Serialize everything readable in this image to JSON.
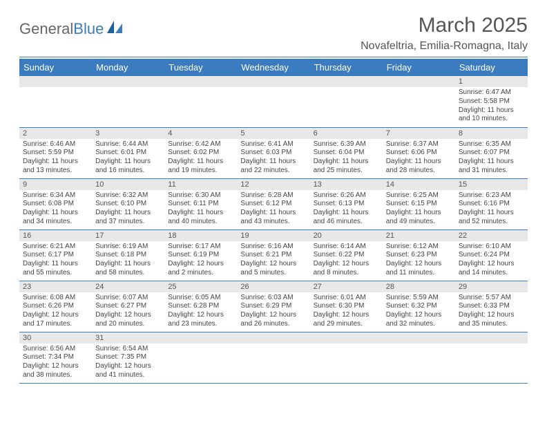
{
  "logo": {
    "textA": "General",
    "textB": "Blue"
  },
  "title": "March 2025",
  "location": "Novafeltria, Emilia-Romagna, Italy",
  "colors": {
    "header_bg": "#3b7bbf",
    "header_text": "#ffffff",
    "daynum_bg": "#e8e8e8",
    "border": "#3b7bbf",
    "body_text": "#444444",
    "title_text": "#555555"
  },
  "typography": {
    "title_fontsize": 30,
    "location_fontsize": 16,
    "dayheader_fontsize": 13,
    "daynum_fontsize": 11,
    "cell_fontsize": 10
  },
  "weekdays": [
    "Sunday",
    "Monday",
    "Tuesday",
    "Wednesday",
    "Thursday",
    "Friday",
    "Saturday"
  ],
  "weeks": [
    [
      null,
      null,
      null,
      null,
      null,
      null,
      {
        "n": "1",
        "sr": "Sunrise: 6:47 AM",
        "ss": "Sunset: 5:58 PM",
        "d1": "Daylight: 11 hours",
        "d2": "and 10 minutes."
      }
    ],
    [
      {
        "n": "2",
        "sr": "Sunrise: 6:46 AM",
        "ss": "Sunset: 5:59 PM",
        "d1": "Daylight: 11 hours",
        "d2": "and 13 minutes."
      },
      {
        "n": "3",
        "sr": "Sunrise: 6:44 AM",
        "ss": "Sunset: 6:01 PM",
        "d1": "Daylight: 11 hours",
        "d2": "and 16 minutes."
      },
      {
        "n": "4",
        "sr": "Sunrise: 6:42 AM",
        "ss": "Sunset: 6:02 PM",
        "d1": "Daylight: 11 hours",
        "d2": "and 19 minutes."
      },
      {
        "n": "5",
        "sr": "Sunrise: 6:41 AM",
        "ss": "Sunset: 6:03 PM",
        "d1": "Daylight: 11 hours",
        "d2": "and 22 minutes."
      },
      {
        "n": "6",
        "sr": "Sunrise: 6:39 AM",
        "ss": "Sunset: 6:04 PM",
        "d1": "Daylight: 11 hours",
        "d2": "and 25 minutes."
      },
      {
        "n": "7",
        "sr": "Sunrise: 6:37 AM",
        "ss": "Sunset: 6:06 PM",
        "d1": "Daylight: 11 hours",
        "d2": "and 28 minutes."
      },
      {
        "n": "8",
        "sr": "Sunrise: 6:35 AM",
        "ss": "Sunset: 6:07 PM",
        "d1": "Daylight: 11 hours",
        "d2": "and 31 minutes."
      }
    ],
    [
      {
        "n": "9",
        "sr": "Sunrise: 6:34 AM",
        "ss": "Sunset: 6:08 PM",
        "d1": "Daylight: 11 hours",
        "d2": "and 34 minutes."
      },
      {
        "n": "10",
        "sr": "Sunrise: 6:32 AM",
        "ss": "Sunset: 6:10 PM",
        "d1": "Daylight: 11 hours",
        "d2": "and 37 minutes."
      },
      {
        "n": "11",
        "sr": "Sunrise: 6:30 AM",
        "ss": "Sunset: 6:11 PM",
        "d1": "Daylight: 11 hours",
        "d2": "and 40 minutes."
      },
      {
        "n": "12",
        "sr": "Sunrise: 6:28 AM",
        "ss": "Sunset: 6:12 PM",
        "d1": "Daylight: 11 hours",
        "d2": "and 43 minutes."
      },
      {
        "n": "13",
        "sr": "Sunrise: 6:26 AM",
        "ss": "Sunset: 6:13 PM",
        "d1": "Daylight: 11 hours",
        "d2": "and 46 minutes."
      },
      {
        "n": "14",
        "sr": "Sunrise: 6:25 AM",
        "ss": "Sunset: 6:15 PM",
        "d1": "Daylight: 11 hours",
        "d2": "and 49 minutes."
      },
      {
        "n": "15",
        "sr": "Sunrise: 6:23 AM",
        "ss": "Sunset: 6:16 PM",
        "d1": "Daylight: 11 hours",
        "d2": "and 52 minutes."
      }
    ],
    [
      {
        "n": "16",
        "sr": "Sunrise: 6:21 AM",
        "ss": "Sunset: 6:17 PM",
        "d1": "Daylight: 11 hours",
        "d2": "and 55 minutes."
      },
      {
        "n": "17",
        "sr": "Sunrise: 6:19 AM",
        "ss": "Sunset: 6:18 PM",
        "d1": "Daylight: 11 hours",
        "d2": "and 58 minutes."
      },
      {
        "n": "18",
        "sr": "Sunrise: 6:17 AM",
        "ss": "Sunset: 6:19 PM",
        "d1": "Daylight: 12 hours",
        "d2": "and 2 minutes."
      },
      {
        "n": "19",
        "sr": "Sunrise: 6:16 AM",
        "ss": "Sunset: 6:21 PM",
        "d1": "Daylight: 12 hours",
        "d2": "and 5 minutes."
      },
      {
        "n": "20",
        "sr": "Sunrise: 6:14 AM",
        "ss": "Sunset: 6:22 PM",
        "d1": "Daylight: 12 hours",
        "d2": "and 8 minutes."
      },
      {
        "n": "21",
        "sr": "Sunrise: 6:12 AM",
        "ss": "Sunset: 6:23 PM",
        "d1": "Daylight: 12 hours",
        "d2": "and 11 minutes."
      },
      {
        "n": "22",
        "sr": "Sunrise: 6:10 AM",
        "ss": "Sunset: 6:24 PM",
        "d1": "Daylight: 12 hours",
        "d2": "and 14 minutes."
      }
    ],
    [
      {
        "n": "23",
        "sr": "Sunrise: 6:08 AM",
        "ss": "Sunset: 6:26 PM",
        "d1": "Daylight: 12 hours",
        "d2": "and 17 minutes."
      },
      {
        "n": "24",
        "sr": "Sunrise: 6:07 AM",
        "ss": "Sunset: 6:27 PM",
        "d1": "Daylight: 12 hours",
        "d2": "and 20 minutes."
      },
      {
        "n": "25",
        "sr": "Sunrise: 6:05 AM",
        "ss": "Sunset: 6:28 PM",
        "d1": "Daylight: 12 hours",
        "d2": "and 23 minutes."
      },
      {
        "n": "26",
        "sr": "Sunrise: 6:03 AM",
        "ss": "Sunset: 6:29 PM",
        "d1": "Daylight: 12 hours",
        "d2": "and 26 minutes."
      },
      {
        "n": "27",
        "sr": "Sunrise: 6:01 AM",
        "ss": "Sunset: 6:30 PM",
        "d1": "Daylight: 12 hours",
        "d2": "and 29 minutes."
      },
      {
        "n": "28",
        "sr": "Sunrise: 5:59 AM",
        "ss": "Sunset: 6:32 PM",
        "d1": "Daylight: 12 hours",
        "d2": "and 32 minutes."
      },
      {
        "n": "29",
        "sr": "Sunrise: 5:57 AM",
        "ss": "Sunset: 6:33 PM",
        "d1": "Daylight: 12 hours",
        "d2": "and 35 minutes."
      }
    ],
    [
      {
        "n": "30",
        "sr": "Sunrise: 6:56 AM",
        "ss": "Sunset: 7:34 PM",
        "d1": "Daylight: 12 hours",
        "d2": "and 38 minutes."
      },
      {
        "n": "31",
        "sr": "Sunrise: 6:54 AM",
        "ss": "Sunset: 7:35 PM",
        "d1": "Daylight: 12 hours",
        "d2": "and 41 minutes."
      },
      null,
      null,
      null,
      null,
      null
    ]
  ]
}
